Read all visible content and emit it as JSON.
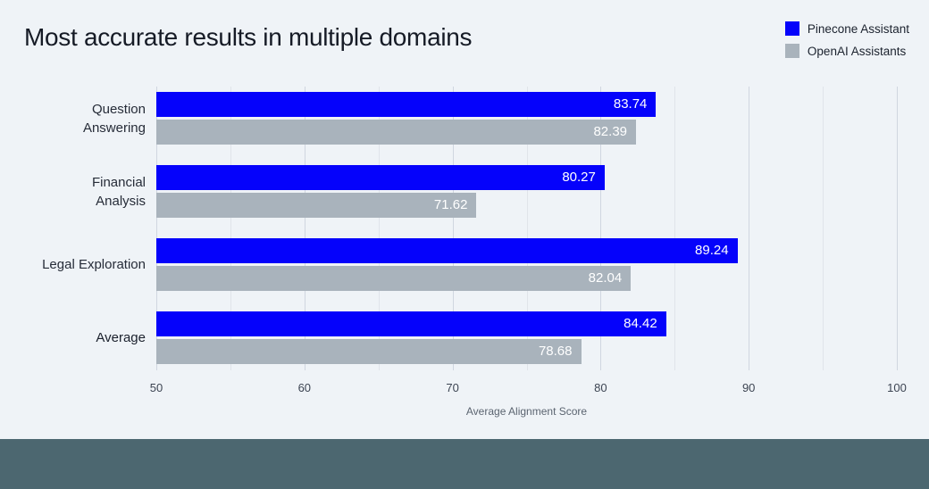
{
  "page": {
    "background_color": "#eff3f7",
    "footer_band_color": "#4c6770"
  },
  "header": {
    "title": "Most accurate results in multiple domains"
  },
  "legend": {
    "items": [
      {
        "label": "Pinecone Assistant",
        "color": "#0502fb"
      },
      {
        "label": "OpenAI Assistants",
        "color": "#a9b3bc"
      }
    ]
  },
  "chart_data": {
    "type": "bar",
    "orientation": "horizontal",
    "title": "Most accurate results in multiple domains",
    "categories": [
      "Question Answering",
      "Financial Analysis",
      "Legal Exploration",
      "Average"
    ],
    "category_lines": [
      [
        "Question",
        "Answering"
      ],
      [
        "Financial",
        "Analysis"
      ],
      [
        "Legal Exploration"
      ],
      [
        "Average"
      ]
    ],
    "emphasized_category": "Average",
    "series": [
      {
        "name": "Pinecone Assistant",
        "color": "#0502fb",
        "values": [
          83.74,
          80.27,
          89.24,
          84.42
        ]
      },
      {
        "name": "OpenAI Assistants",
        "color": "#a9b3bc",
        "values": [
          82.39,
          71.62,
          82.04,
          78.68
        ]
      }
    ],
    "value_label_color": "#ffffff",
    "value_decimals": 2,
    "xlabel": "Average Alignment Score",
    "xlim": [
      50,
      100
    ],
    "xticks": [
      50,
      60,
      70,
      80,
      90,
      100
    ],
    "minor_grid_step": 5,
    "grid": true,
    "legend_position": "top-right"
  }
}
